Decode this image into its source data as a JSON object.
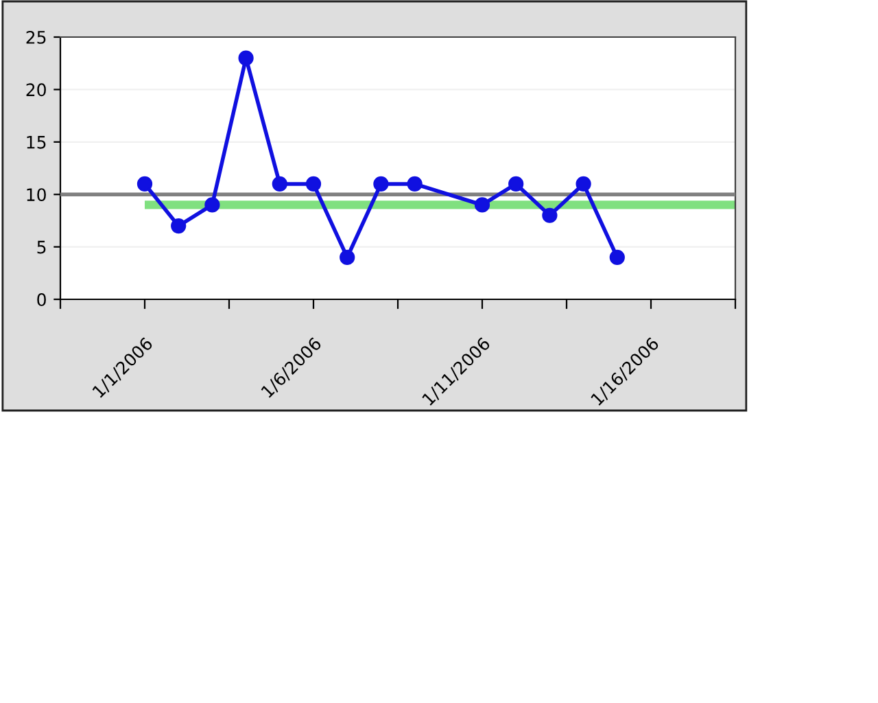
{
  "chart_data": {
    "type": "line",
    "x": [
      "2006-01-01",
      "2006-01-02",
      "2006-01-03",
      "2006-01-04",
      "2006-01-05",
      "2006-01-06",
      "2006-01-07",
      "2006-01-08",
      "2006-01-09",
      "2006-01-11",
      "2006-01-12",
      "2006-01-13",
      "2006-01-14",
      "2006-01-15"
    ],
    "series": [
      {
        "color": "#1010e0",
        "values": [
          11,
          7,
          9,
          23,
          11,
          11,
          4,
          11,
          11,
          9,
          11,
          8,
          11,
          4
        ]
      }
    ],
    "marker": "circle",
    "line_style": "solid",
    "xlim": [
      "2005-12-29T12:00",
      "2006-01-18T12:00"
    ],
    "xticks": [
      {
        "value": "2005-12-29T12:00",
        "label": null
      },
      {
        "value": "2006-01-01",
        "label": "1/1/2006"
      },
      {
        "value": "2006-01-03T12:00",
        "label": null
      },
      {
        "value": "2006-01-06",
        "label": "1/6/2006"
      },
      {
        "value": "2006-01-08T12:00",
        "label": null
      },
      {
        "value": "2006-01-11",
        "label": "1/11/2006"
      },
      {
        "value": "2006-01-13T12:00",
        "label": null
      },
      {
        "value": "2006-01-16",
        "label": "1/16/2006"
      },
      {
        "value": "2006-01-18T12:00",
        "label": null
      }
    ],
    "ylim": [
      0,
      25
    ],
    "yticks": [
      0,
      5,
      10,
      15,
      20,
      25
    ],
    "grid": "y",
    "ref_lines": [
      {
        "axis": "y",
        "value": 10,
        "label": null,
        "color": "#808080"
      }
    ],
    "bands": [
      {
        "axis": "y",
        "from": 8.6,
        "to": 9.4,
        "label": null,
        "color": "#80e080"
      }
    ]
  }
}
